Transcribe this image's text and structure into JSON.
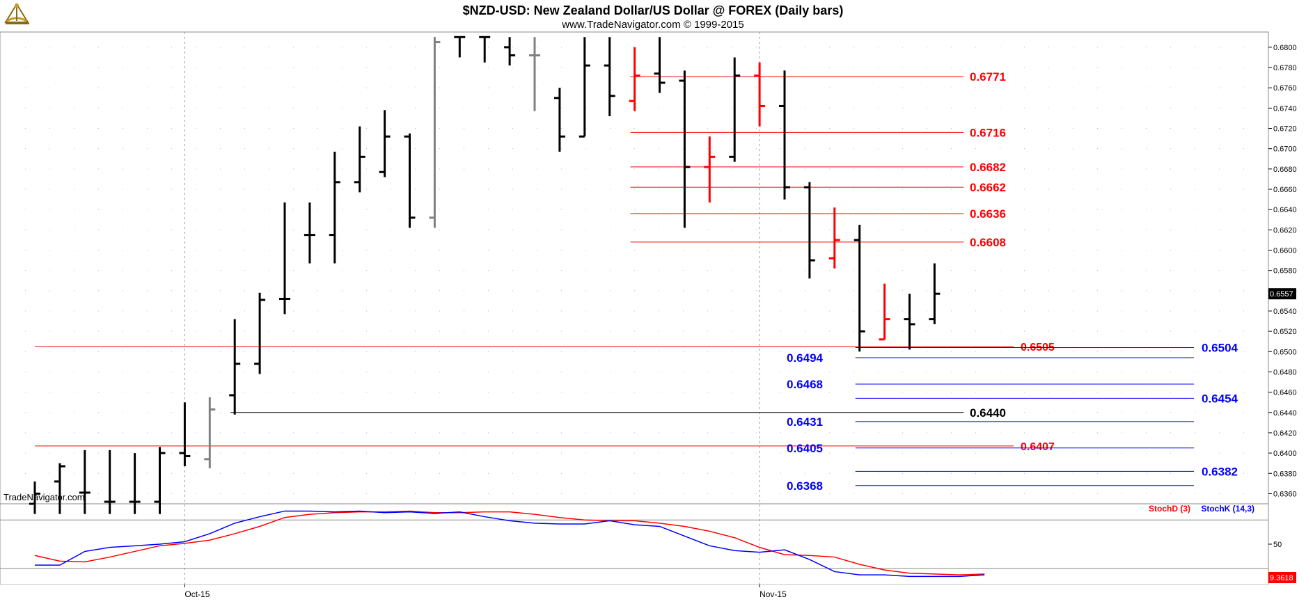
{
  "header": {
    "title": "$NZD-USD:  New Zealand Dollar/US Dollar @ FOREX  (Daily bars)",
    "subtitle": "www.TradeNavigator.com © 1999-2015",
    "logo_icon": "sextant-icon"
  },
  "watermark": "TradeNavigator.com",
  "colors": {
    "black_bar": "#000000",
    "gray_bar": "#808080",
    "red_bar": "#ff0000",
    "red_line": "#ff0000",
    "blue_line": "#0000ff",
    "black_line": "#000000",
    "stochD": "#ff0000",
    "stochK": "#0000ff",
    "grid_dot": "#b8b8b8"
  },
  "chart_data": [
    {
      "type": "ohlc",
      "title": "$NZD-USD:  New Zealand Dollar/US Dollar @ FOREX  (Daily bars)",
      "ylim": [
        0.635,
        0.6815
      ],
      "y_ticks": [
        "0.6800",
        "0.6780",
        "0.6760",
        "0.6740",
        "0.6720",
        "0.6700",
        "0.6680",
        "0.6660",
        "0.6640",
        "0.6620",
        "0.6600",
        "0.6580",
        "0.6560",
        "0.6540",
        "0.6520",
        "0.6500",
        "0.6480",
        "0.6460",
        "0.6440",
        "0.6420",
        "0.6400",
        "0.6380",
        "0.6360"
      ],
      "x_labels": [
        {
          "bar": 6,
          "label": "Oct-15"
        },
        {
          "bar": 29,
          "label": "Nov-15"
        }
      ],
      "last_price": "0.6557",
      "bars": [
        {
          "o": 0.635,
          "h": 0.6372,
          "l": 0.634,
          "c": 0.636,
          "color": "black"
        },
        {
          "o": 0.6372,
          "h": 0.639,
          "l": 0.634,
          "c": 0.6387,
          "color": "black"
        },
        {
          "o": 0.6361,
          "h": 0.6403,
          "l": 0.634,
          "c": 0.6361,
          "color": "black"
        },
        {
          "o": 0.6352,
          "h": 0.6403,
          "l": 0.634,
          "c": 0.6352,
          "color": "black"
        },
        {
          "o": 0.6352,
          "h": 0.64,
          "l": 0.634,
          "c": 0.6352,
          "color": "black"
        },
        {
          "o": 0.6352,
          "h": 0.6406,
          "l": 0.634,
          "c": 0.64,
          "color": "black"
        },
        {
          "o": 0.64,
          "h": 0.645,
          "l": 0.6387,
          "c": 0.6397,
          "color": "black"
        },
        {
          "o": 0.6394,
          "h": 0.6455,
          "l": 0.6385,
          "c": 0.6443,
          "color": "gray"
        },
        {
          "o": 0.6457,
          "h": 0.6532,
          "l": 0.6438,
          "c": 0.6488,
          "color": "black"
        },
        {
          "o": 0.6488,
          "h": 0.6558,
          "l": 0.6478,
          "c": 0.6551,
          "color": "black"
        },
        {
          "o": 0.6552,
          "h": 0.6647,
          "l": 0.6537,
          "c": 0.6552,
          "color": "black"
        },
        {
          "o": 0.6615,
          "h": 0.6647,
          "l": 0.6587,
          "c": 0.6615,
          "color": "black"
        },
        {
          "o": 0.6615,
          "h": 0.6697,
          "l": 0.6587,
          "c": 0.6667,
          "color": "black"
        },
        {
          "o": 0.6667,
          "h": 0.6722,
          "l": 0.6657,
          "c": 0.6692,
          "color": "black"
        },
        {
          "o": 0.6677,
          "h": 0.6738,
          "l": 0.6672,
          "c": 0.6712,
          "color": "black"
        },
        {
          "o": 0.6712,
          "h": 0.6715,
          "l": 0.6622,
          "c": 0.6632,
          "color": "black"
        },
        {
          "o": 0.6632,
          "h": 0.681,
          "l": 0.6622,
          "c": 0.6805,
          "color": "gray"
        },
        {
          "o": 0.681,
          "h": 0.681,
          "l": 0.679,
          "c": 0.681,
          "color": "black"
        },
        {
          "o": 0.681,
          "h": 0.681,
          "l": 0.6785,
          "c": 0.681,
          "color": "black"
        },
        {
          "o": 0.68,
          "h": 0.681,
          "l": 0.6782,
          "c": 0.6792,
          "color": "black"
        },
        {
          "o": 0.6792,
          "h": 0.681,
          "l": 0.6737,
          "c": 0.6792,
          "color": "gray"
        },
        {
          "o": 0.675,
          "h": 0.676,
          "l": 0.6697,
          "c": 0.6712,
          "color": "black"
        },
        {
          "o": 0.6712,
          "h": 0.681,
          "l": 0.6712,
          "c": 0.6782,
          "color": "black"
        },
        {
          "o": 0.6782,
          "h": 0.681,
          "l": 0.6732,
          "c": 0.6752,
          "color": "black"
        },
        {
          "o": 0.6747,
          "h": 0.68,
          "l": 0.6737,
          "c": 0.6772,
          "color": "red"
        },
        {
          "o": 0.6774,
          "h": 0.681,
          "l": 0.6755,
          "c": 0.6765,
          "color": "black"
        },
        {
          "o": 0.6767,
          "h": 0.6777,
          "l": 0.6622,
          "c": 0.6682,
          "color": "black"
        },
        {
          "o": 0.6682,
          "h": 0.6712,
          "l": 0.6647,
          "c": 0.6692,
          "color": "red"
        },
        {
          "o": 0.6692,
          "h": 0.679,
          "l": 0.6687,
          "c": 0.6772,
          "color": "black"
        },
        {
          "o": 0.6772,
          "h": 0.6785,
          "l": 0.6722,
          "c": 0.6742,
          "color": "red"
        },
        {
          "o": 0.6742,
          "h": 0.6777,
          "l": 0.665,
          "c": 0.6662,
          "color": "black"
        },
        {
          "o": 0.6662,
          "h": 0.6667,
          "l": 0.6572,
          "c": 0.659,
          "color": "black"
        },
        {
          "o": 0.6592,
          "h": 0.6642,
          "l": 0.6582,
          "c": 0.661,
          "color": "red"
        },
        {
          "o": 0.661,
          "h": 0.6625,
          "l": 0.65,
          "c": 0.652,
          "color": "black"
        },
        {
          "o": 0.6512,
          "h": 0.6567,
          "l": 0.6512,
          "c": 0.6532,
          "color": "red"
        },
        {
          "o": 0.6532,
          "h": 0.6557,
          "l": 0.6502,
          "c": 0.6527,
          "color": "black"
        },
        {
          "o": 0.6532,
          "h": 0.6587,
          "l": 0.6527,
          "c": 0.6557,
          "color": "black"
        }
      ],
      "levels": [
        {
          "value": 0.6771,
          "label": "0.6771",
          "color": "red",
          "from_bar": 24,
          "to_bar": 37,
          "label_side": "right-mid",
          "bold": true
        },
        {
          "value": 0.6716,
          "label": "0.6716",
          "color": "red",
          "from_bar": 24,
          "to_bar": 37,
          "label_side": "right-mid",
          "bold": true
        },
        {
          "value": 0.6682,
          "label": "0.6682",
          "color": "red",
          "from_bar": 24,
          "to_bar": 37,
          "label_side": "right-mid",
          "bold": true
        },
        {
          "value": 0.6662,
          "label": "0.6662",
          "color": "red",
          "from_bar": 24,
          "to_bar": 37,
          "label_side": "right-mid",
          "bold": true
        },
        {
          "value": 0.6636,
          "label": "0.6636",
          "color": "red",
          "from_bar": 24,
          "to_bar": 37,
          "label_side": "right-mid",
          "bold": true
        },
        {
          "value": 0.6608,
          "label": "0.6608",
          "color": "red",
          "from_bar": 24,
          "to_bar": 37,
          "label_side": "right-mid",
          "bold": true
        },
        {
          "value": 0.6505,
          "label": "0.6505",
          "color": "red",
          "from_bar": -1,
          "to_bar": 39,
          "label_side": "red-end",
          "bold": false
        },
        {
          "value": 0.6407,
          "label": "0.6407",
          "color": "red",
          "from_bar": -1,
          "to_bar": 39,
          "label_side": "red-end",
          "bold": false
        },
        {
          "value": 0.644,
          "label": "0.6440",
          "color": "black",
          "from_bar": 8,
          "to_bar": 37,
          "label_side": "right-mid",
          "bold": true
        },
        {
          "value": 0.6504,
          "label": "0.6504",
          "color": "blue",
          "from_bar": 33,
          "to_bar": 47,
          "label_side": "far-right",
          "bold": true
        },
        {
          "value": 0.6494,
          "label": "0.6494",
          "color": "blue",
          "from_bar": 33,
          "to_bar": 47,
          "label_side": "left",
          "bold": true
        },
        {
          "value": 0.6468,
          "label": "0.6468",
          "color": "blue",
          "from_bar": 33,
          "to_bar": 47,
          "label_side": "left",
          "bold": true
        },
        {
          "value": 0.6454,
          "label": "0.6454",
          "color": "blue",
          "from_bar": 33,
          "to_bar": 47,
          "label_side": "far-right",
          "bold": true
        },
        {
          "value": 0.6431,
          "label": "0.6431",
          "color": "blue",
          "from_bar": 33,
          "to_bar": 47,
          "label_side": "left",
          "bold": true
        },
        {
          "value": 0.6405,
          "label": "0.6405",
          "color": "blue",
          "from_bar": 33,
          "to_bar": 47,
          "label_side": "left",
          "bold": true
        },
        {
          "value": 0.6382,
          "label": "0.6382",
          "color": "blue",
          "from_bar": 33,
          "to_bar": 47,
          "label_side": "far-right",
          "bold": true
        },
        {
          "value": 0.6368,
          "label": "0.6368",
          "color": "blue",
          "from_bar": 33,
          "to_bar": 47,
          "label_side": "left",
          "bold": true
        }
      ]
    },
    {
      "type": "line",
      "title": "Stochastic",
      "ylim": [
        0,
        100
      ],
      "y_ticks": [
        "50"
      ],
      "reference_lines": [
        80,
        20
      ],
      "last_value": "9.3618",
      "series": [
        {
          "name": "StochD (3)",
          "color": "red",
          "values": [
            36,
            29,
            28,
            34,
            41,
            48,
            51,
            55,
            63,
            72,
            83,
            87,
            89,
            90,
            90,
            91,
            89,
            89,
            90,
            90,
            87,
            83,
            80,
            79,
            79,
            76,
            72,
            66,
            58,
            46,
            37,
            36,
            34,
            25,
            18,
            14,
            13,
            12,
            13
          ]
        },
        {
          "name": "StochK (14,3)",
          "color": "blue",
          "values": [
            24,
            24,
            41,
            46,
            48,
            50,
            53,
            63,
            76,
            84,
            91,
            91,
            90,
            91,
            89,
            90,
            88,
            90,
            84,
            79,
            76,
            75,
            75,
            79,
            74,
            72,
            60,
            48,
            42,
            40,
            43,
            31,
            16,
            12,
            12,
            10,
            10,
            10,
            12
          ]
        }
      ]
    }
  ]
}
